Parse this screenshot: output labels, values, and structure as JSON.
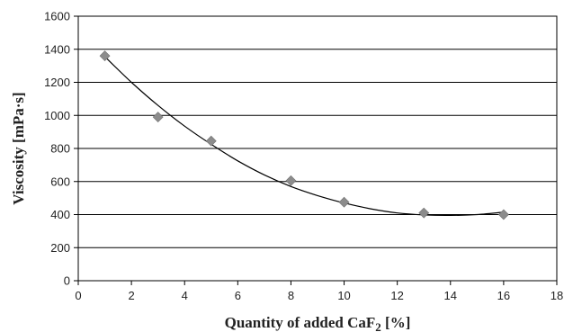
{
  "chart_data": {
    "type": "scatter",
    "xlabel": "Quantity of added CaF",
    "xlabel_sub": "2",
    "xlabel_tail": " [%]",
    "ylabel": "Viscosity  [mPa·s]",
    "xlim": [
      0,
      18
    ],
    "ylim": [
      0,
      1600
    ],
    "xticks": [
      0,
      2,
      4,
      6,
      8,
      10,
      12,
      14,
      16,
      18
    ],
    "yticks": [
      0,
      200,
      400,
      600,
      800,
      1000,
      1200,
      1400,
      1600
    ],
    "grid": "horizontal",
    "legend": "none",
    "series": [
      {
        "marker": "diamond",
        "color": "#8c8c8c",
        "x": [
          1,
          3,
          5,
          8,
          10,
          13,
          16
        ],
        "y": [
          1360,
          990,
          845,
          605,
          475,
          410,
          400
        ]
      }
    ],
    "trendline": {
      "kind": "polynomial",
      "color": "#000000",
      "x": [
        1,
        2,
        3,
        4,
        5,
        6,
        7,
        8,
        9,
        10,
        11,
        12,
        13,
        14,
        15,
        16
      ],
      "y": [
        1355,
        1200,
        1060,
        935,
        825,
        725,
        640,
        570,
        515,
        470,
        435,
        410,
        398,
        395,
        400,
        415
      ]
    }
  }
}
